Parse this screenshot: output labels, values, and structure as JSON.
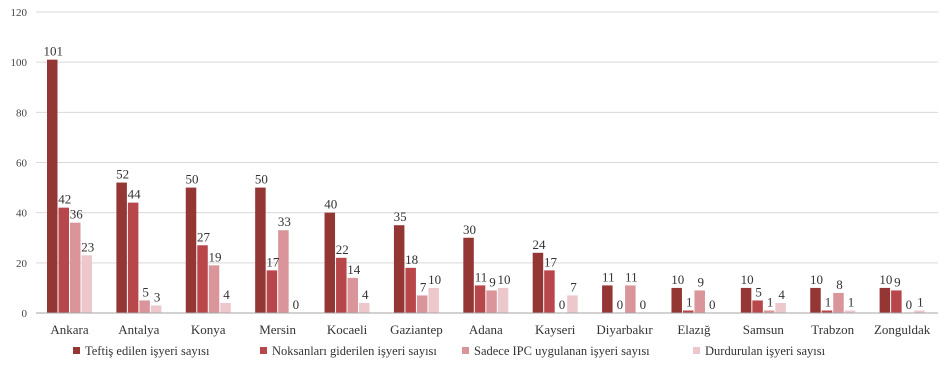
{
  "chart_data": {
    "type": "bar",
    "categories": [
      "Ankara",
      "Antalya",
      "Konya",
      "Mersin",
      "Kocaeli",
      "Gaziantep",
      "Adana",
      "Kayseri",
      "Diyarbakır",
      "Elazığ",
      "Samsun",
      "Trabzon",
      "Zonguldak"
    ],
    "series": [
      {
        "name": "Teftiş edilen işyeri sayısı",
        "color": "#943634",
        "values": [
          101,
          52,
          50,
          50,
          40,
          35,
          30,
          24,
          11,
          10,
          10,
          10,
          10
        ]
      },
      {
        "name": "Noksanları giderilen işyeri sayısı",
        "color": "#b8474c",
        "values": [
          42,
          44,
          27,
          17,
          22,
          18,
          11,
          17,
          0,
          1,
          5,
          1,
          9
        ]
      },
      {
        "name": "Sadece IPC uygulanan işyeri sayısı",
        "color": "#d9959a",
        "values": [
          36,
          5,
          19,
          33,
          14,
          7,
          9,
          0,
          11,
          9,
          1,
          8,
          0
        ]
      },
      {
        "name": "Durdurulan işyeri sayısı",
        "color": "#ecc8cc",
        "values": [
          23,
          3,
          4,
          0,
          4,
          10,
          10,
          7,
          0,
          0,
          4,
          1,
          1
        ]
      }
    ],
    "y_ticks": [
      0,
      20,
      40,
      60,
      80,
      100,
      120
    ],
    "ylim": [
      0,
      120
    ],
    "grid": true,
    "legend": "bottom",
    "title": "",
    "xlabel": "",
    "ylabel": ""
  }
}
